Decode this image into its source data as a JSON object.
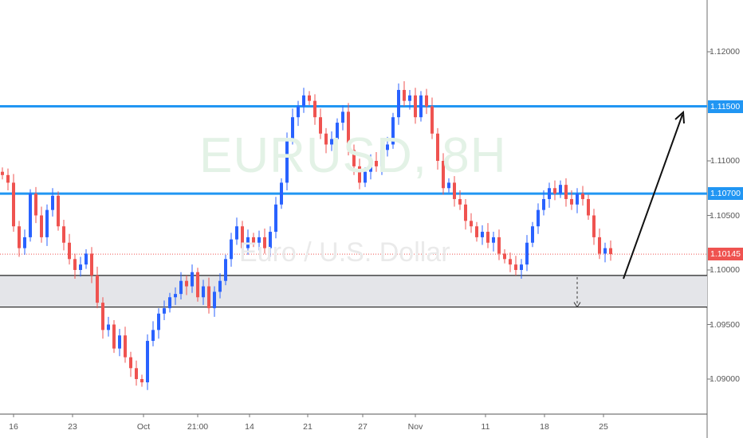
{
  "symbol_watermark": "EURUSD, 8H",
  "description_watermark": "Euro / U.S. Dollar",
  "chart_data": {
    "type": "candlestick",
    "x_ticks": [
      "16",
      "23",
      "Oct",
      "21:00",
      "14",
      "21",
      "27",
      "Nov",
      "11",
      "18",
      "25"
    ],
    "y_ticks": [
      "1.12000",
      "1.11000",
      "1.10500",
      "1.10000",
      "1.09500",
      "1.09000"
    ],
    "y_tick_values": [
      1.12,
      1.11,
      1.105,
      1.1,
      1.095,
      1.09
    ],
    "ylim": [
      1.0875,
      1.1245
    ],
    "first_open": 1.109,
    "closes": [
      1.1087,
      1.108,
      1.104,
      1.102,
      1.103,
      1.107,
      1.105,
      1.103,
      1.1055,
      1.1068,
      1.104,
      1.1025,
      1.101,
      1.1,
      1.1005,
      1.1015,
      1.0995,
      1.097,
      1.0945,
      1.095,
      1.0928,
      1.094,
      1.092,
      1.091,
      1.09,
      1.0897,
      1.0935,
      1.0945,
      1.096,
      1.0965,
      1.0975,
      1.0978,
      1.099,
      1.0985,
      1.0998,
      1.0975,
      1.0985,
      1.0965,
      1.098,
      1.099,
      1.101,
      1.1028,
      1.104,
      1.102,
      1.103,
      1.1025,
      1.103,
      1.102,
      1.1035,
      1.106,
      1.108,
      1.112,
      1.114,
      1.115,
      1.116,
      1.1155,
      1.114,
      1.1125,
      1.1115,
      1.112,
      1.1135,
      1.1145,
      1.111,
      1.1095,
      1.108,
      1.109,
      1.11,
      1.1095,
      1.111,
      1.1115,
      1.114,
      1.1165,
      1.1155,
      1.116,
      1.114,
      1.116,
      1.115,
      1.1125,
      1.11,
      1.1075,
      1.108,
      1.1065,
      1.106,
      1.1045,
      1.104,
      1.103,
      1.1035,
      1.1025,
      1.103,
      1.1015,
      1.101,
      1.1005,
      1.1,
      1.1005,
      1.1025,
      1.104,
      1.1055,
      1.1065,
      1.1075,
      1.107,
      1.1078,
      1.1065,
      1.106,
      1.107,
      1.1065,
      1.105,
      1.103,
      1.1015,
      1.102,
      1.10145
    ],
    "levels": [
      {
        "price": 1.115,
        "label": "1.11500",
        "color": "#2196f3"
      },
      {
        "price": 1.107,
        "label": "1.10700",
        "color": "#2196f3"
      }
    ],
    "support_zone": [
      1.0966,
      1.0995
    ],
    "current_price": {
      "price": 1.10145,
      "label": "1.10145",
      "color": "#ef5350"
    },
    "colors": {
      "up": "#2962ff",
      "down": "#ef5350"
    }
  }
}
